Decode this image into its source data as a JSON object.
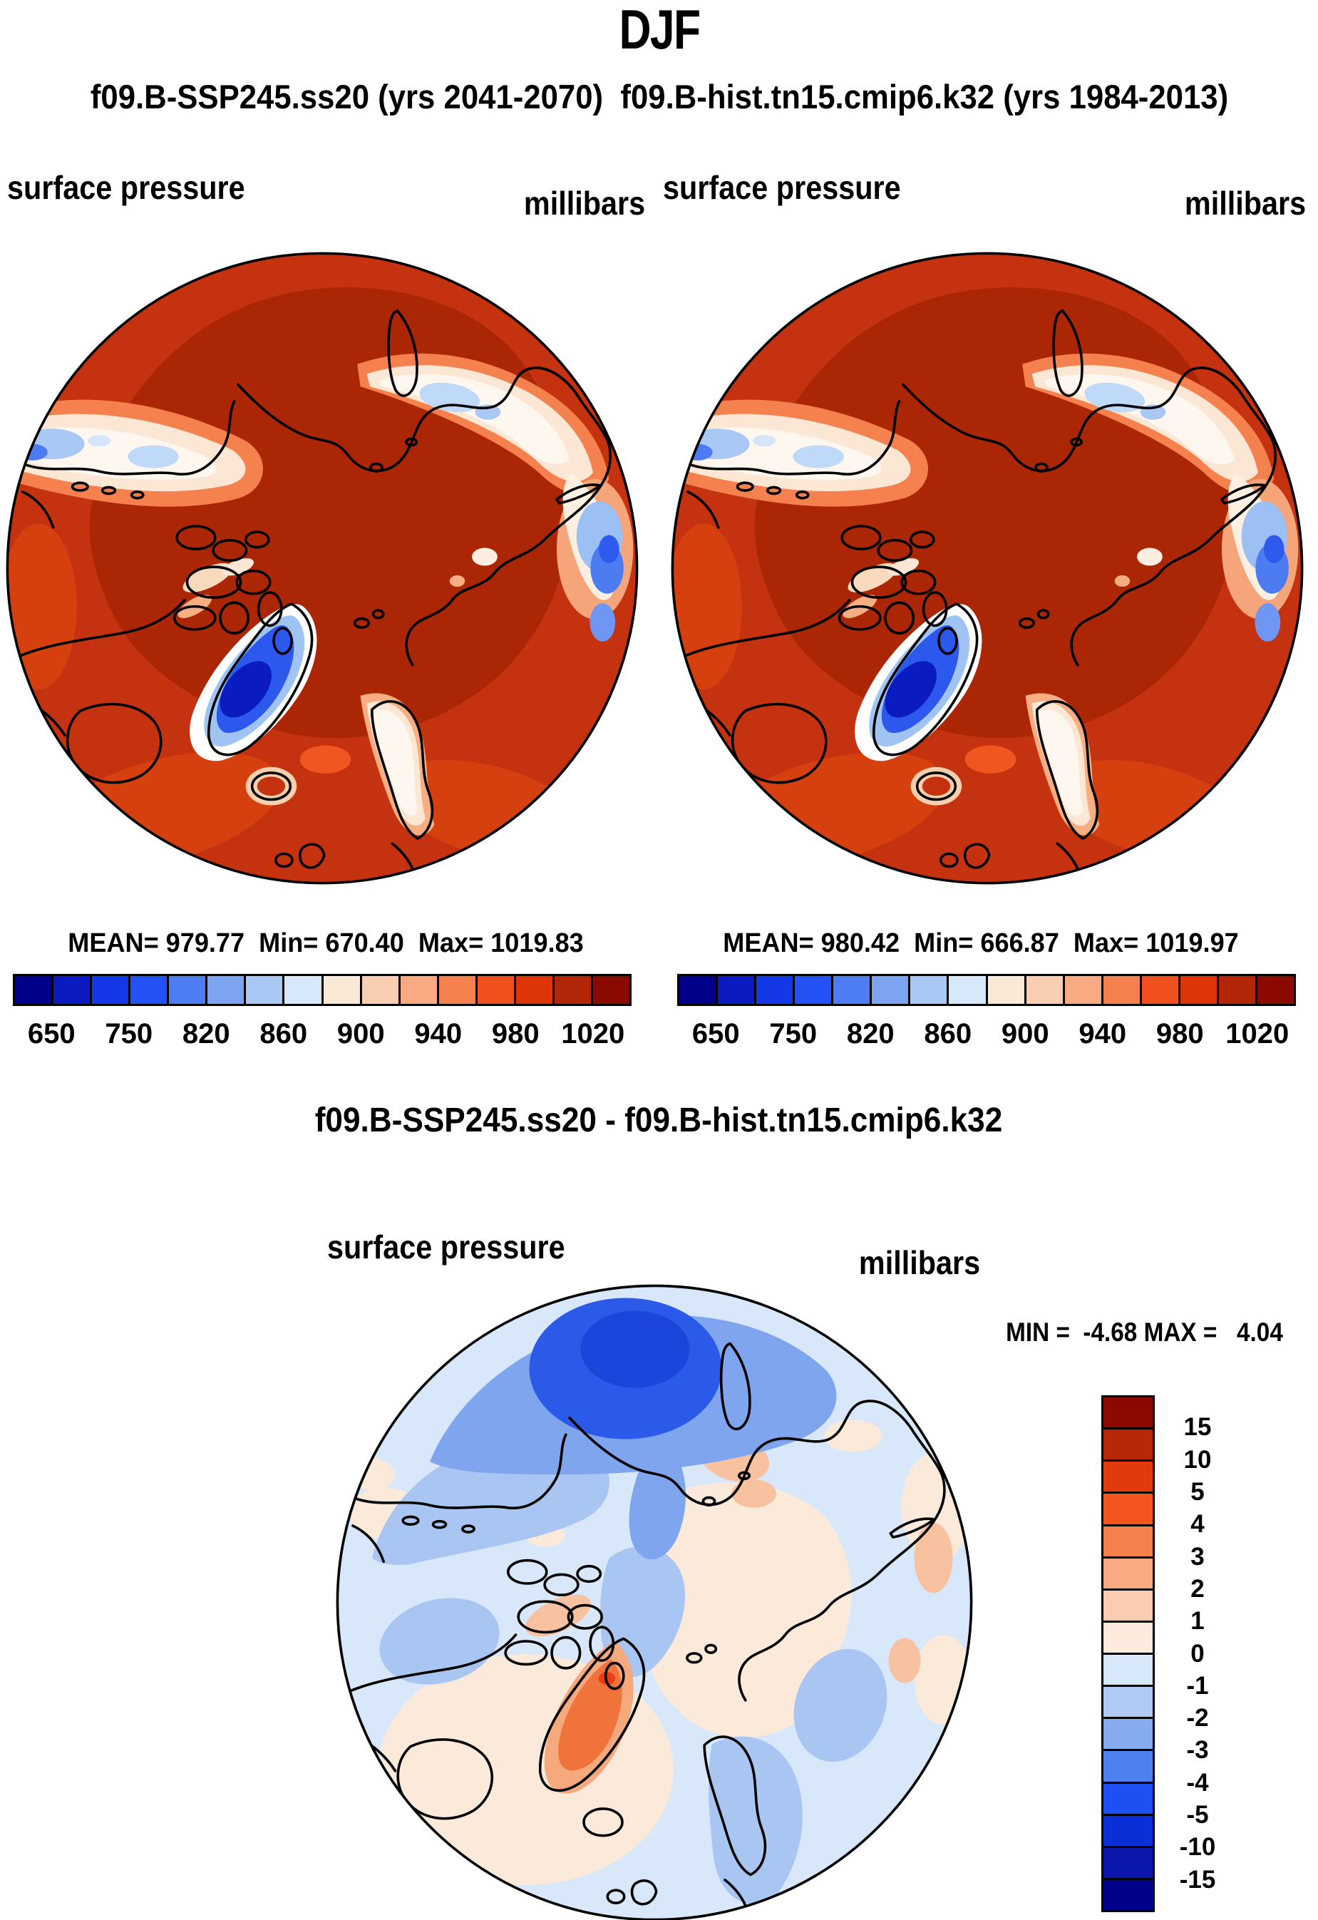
{
  "header": {
    "season": "DJF",
    "subtitle": "f09.B-SSP245.ss20 (yrs 2041-2070)  f09.B-hist.tn15.cmip6.k32 (yrs 1984-2013)"
  },
  "top_panels": {
    "left": {
      "field": "surface pressure",
      "units": "millibars",
      "stats": "MEAN= 979.77  Min= 670.40  Max= 1019.83",
      "mean": "979.77",
      "min": "670.40",
      "max": "1019.83"
    },
    "right": {
      "field": "surface pressure",
      "units": "millibars",
      "stats": "MEAN= 980.42  Min= 666.87  Max= 1019.97",
      "mean": "980.42",
      "min": "666.87",
      "max": "1019.97"
    }
  },
  "pressure_colorbar": {
    "ticks": [
      "650",
      "750",
      "820",
      "860",
      "900",
      "940",
      "980",
      "1020"
    ],
    "colors": [
      "#00008B",
      "#0A1BC2",
      "#1438E8",
      "#2353F7",
      "#4E7DF3",
      "#7DA4F0",
      "#A9C8F3",
      "#D7E8FA",
      "#FBE9D8",
      "#F9CEB2",
      "#F8AB82",
      "#F5814E",
      "#F1521D",
      "#DD3408",
      "#B22506",
      "#8B0A00"
    ]
  },
  "diff_section": {
    "title": "f09.B-SSP245.ss20 - f09.B-hist.tn15.cmip6.k32",
    "field": "surface pressure",
    "units": "millibars",
    "minmax": "MIN =  -4.68 MAX =   4.04",
    "min": "-4.68",
    "max": "4.04"
  },
  "diff_colorbar": {
    "ticks": [
      "15",
      "10",
      "5",
      "4",
      "3",
      "2",
      "1",
      "0",
      "-1",
      "-2",
      "-3",
      "-4",
      "-5",
      "-10",
      "-15"
    ],
    "colors": [
      "#8B0A00",
      "#B82708",
      "#E23A0D",
      "#F4541D",
      "#F5814E",
      "#F8AB82",
      "#FBCDB0",
      "#FCEBDC",
      "#D7E8FA",
      "#AECBF4",
      "#86ACF0",
      "#4F80F0",
      "#1E4FF2",
      "#0B2FD6",
      "#0A16AC",
      "#00008B"
    ]
  },
  "chart_data": {
    "type": "heatmap",
    "title": "DJF",
    "subtitle": "f09.B-SSP245.ss20 (yrs 2041-2070)  f09.B-hist.tn15.cmip6.k32 (yrs 1984-2013)",
    "projection": "north polar stereographic",
    "panels": [
      {
        "name": "f09.B-SSP245.ss20 (yrs 2041-2070)",
        "variable": "surface pressure",
        "units": "millibars",
        "mean": 979.77,
        "min": 670.4,
        "max": 1019.83,
        "colorbar_ticks": [
          650,
          750,
          820,
          860,
          900,
          940,
          980,
          1020
        ],
        "colorbar_segments": 16,
        "legend_position": "bottom"
      },
      {
        "name": "f09.B-hist.tn15.cmip6.k32 (yrs 1984-2013)",
        "variable": "surface pressure",
        "units": "millibars",
        "mean": 980.42,
        "min": 666.87,
        "max": 1019.97,
        "colorbar_ticks": [
          650,
          750,
          820,
          860,
          900,
          940,
          980,
          1020
        ],
        "colorbar_segments": 16,
        "legend_position": "bottom"
      },
      {
        "name": "f09.B-SSP245.ss20 - f09.B-hist.tn15.cmip6.k32",
        "variable": "surface pressure difference",
        "units": "millibars",
        "min": -4.68,
        "max": 4.04,
        "colorbar_ticks": [
          15,
          10,
          5,
          4,
          3,
          2,
          1,
          0,
          -1,
          -2,
          -3,
          -4,
          -5,
          -10,
          -15
        ],
        "colorbar_segments": 16,
        "legend_position": "right"
      }
    ]
  }
}
